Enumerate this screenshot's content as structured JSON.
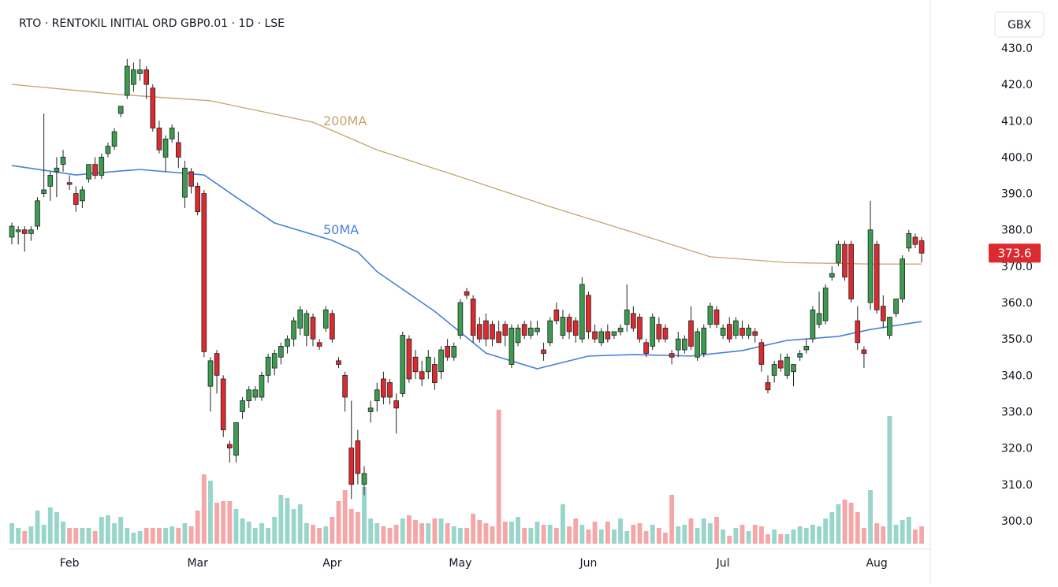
{
  "chart_data": {
    "type": "candlestick",
    "title": "RTO · RENTOKIL INITIAL ORD GBP0.01 · 1D · LSE",
    "currency": "GBX",
    "up_color": "#3b9c4f",
    "down_color": "#dd2a2f",
    "volume_up_color": "#98d5cb",
    "volume_down_color": "#f5a6a6",
    "xlim": [
      -0.37,
      143.1
    ],
    "ylim": [
      293.7,
      441.05
    ],
    "volume_ylim": [
      0,
      10
    ],
    "xticks": [
      {
        "value": 9,
        "label": "Feb"
      },
      {
        "value": 29,
        "label": "Mar"
      },
      {
        "value": 50,
        "label": "Apr"
      },
      {
        "value": 70,
        "label": "May"
      },
      {
        "value": 90,
        "label": "Jun"
      },
      {
        "value": 111,
        "label": "Jul"
      },
      {
        "value": 135,
        "label": "Aug"
      }
    ],
    "yticks": [
      {
        "value": 300,
        "label": "300.0"
      },
      {
        "value": 310,
        "label": "310.0"
      },
      {
        "value": 320,
        "label": "320.0"
      },
      {
        "value": 330,
        "label": "330.0"
      },
      {
        "value": 340,
        "label": "340.0"
      },
      {
        "value": 350,
        "label": "350.0"
      },
      {
        "value": 360,
        "label": "360.0"
      },
      {
        "value": 370,
        "label": "370.0"
      },
      {
        "value": 380,
        "label": "380.0"
      },
      {
        "value": 390,
        "label": "390.0"
      },
      {
        "value": 400,
        "label": "400.0"
      },
      {
        "value": 410,
        "label": "410.0"
      },
      {
        "value": 420,
        "label": "420.0"
      },
      {
        "value": 430,
        "label": "430.0"
      }
    ],
    "candles": [
      [
        378,
        382,
        376,
        381
      ],
      [
        379.5,
        381,
        376,
        380
      ],
      [
        380,
        381,
        374,
        379
      ],
      [
        379,
        381,
        377,
        380
      ],
      [
        381,
        389,
        380,
        388
      ],
      [
        390,
        412,
        389,
        391
      ],
      [
        392,
        396,
        388,
        395
      ],
      [
        396,
        400,
        389,
        397
      ],
      [
        398,
        402,
        396,
        400
      ],
      [
        393,
        395,
        391,
        392.5
      ],
      [
        390,
        392,
        385,
        387
      ],
      [
        388,
        392,
        386,
        391
      ],
      [
        394,
        398,
        393,
        398
      ],
      [
        398,
        400,
        394,
        395
      ],
      [
        395,
        401,
        394,
        400
      ],
      [
        401,
        404,
        400,
        403
      ],
      [
        403,
        408,
        402,
        407
      ],
      [
        412,
        414,
        411,
        414
      ],
      [
        417,
        427,
        416,
        425
      ],
      [
        420,
        426,
        418,
        424
      ],
      [
        423,
        427,
        421,
        424
      ],
      [
        424,
        425,
        416,
        420
      ],
      [
        419,
        420,
        407,
        408
      ],
      [
        408,
        410,
        401,
        402
      ],
      [
        400,
        406,
        396,
        405
      ],
      [
        405,
        409,
        404,
        408
      ],
      [
        404,
        407,
        397,
        400
      ],
      [
        389,
        399,
        386,
        397
      ],
      [
        396,
        397,
        390,
        392
      ],
      [
        392,
        393,
        384,
        385
      ],
      [
        390,
        391,
        345,
        346.5
      ],
      [
        337,
        345,
        330,
        344
      ],
      [
        346,
        347,
        335,
        340
      ],
      [
        339,
        340,
        323,
        325
      ],
      [
        321,
        322,
        316,
        320
      ],
      [
        318,
        327,
        316,
        327
      ],
      [
        330,
        334,
        328,
        333
      ],
      [
        333,
        337,
        331,
        336
      ],
      [
        334,
        337,
        333,
        336
      ],
      [
        334,
        341,
        333,
        340
      ],
      [
        340,
        346,
        338,
        345
      ],
      [
        342,
        347,
        340,
        346
      ],
      [
        345,
        349,
        343,
        348
      ],
      [
        348,
        351,
        346,
        350
      ],
      [
        350,
        356,
        348,
        355
      ],
      [
        353,
        359,
        351,
        358
      ],
      [
        351,
        358,
        348,
        357
      ],
      [
        356,
        357,
        348,
        350
      ],
      [
        349,
        350,
        347,
        348
      ],
      [
        353,
        359,
        352,
        358
      ],
      [
        357,
        358,
        349,
        350
      ],
      [
        344,
        345,
        342,
        343
      ],
      [
        340,
        341,
        330,
        334
      ],
      [
        320,
        333,
        306,
        310
      ],
      [
        322,
        325,
        310,
        313
      ],
      [
        310,
        315,
        307,
        313
      ],
      [
        330,
        333,
        327,
        331
      ],
      [
        333,
        338,
        330,
        336
      ],
      [
        339,
        341,
        332,
        334
      ],
      [
        338,
        339,
        332,
        334
      ],
      [
        333,
        335,
        324,
        331
      ],
      [
        335,
        352,
        334,
        351
      ],
      [
        350,
        351,
        338,
        339
      ],
      [
        345,
        347,
        339,
        341
      ],
      [
        341,
        344,
        337,
        339
      ],
      [
        341,
        347,
        339,
        345
      ],
      [
        343,
        345,
        336,
        338
      ],
      [
        341,
        348,
        339,
        347
      ],
      [
        348,
        350,
        344,
        345
      ],
      [
        345,
        349,
        344,
        348
      ],
      [
        351,
        361,
        350,
        360
      ],
      [
        363,
        364,
        361,
        362
      ],
      [
        361,
        362,
        349,
        351
      ],
      [
        354,
        356,
        349,
        350
      ],
      [
        355,
        357,
        348,
        350
      ],
      [
        354,
        355,
        348,
        350
      ],
      [
        352,
        355,
        349,
        349
      ],
      [
        354,
        355,
        348,
        351
      ],
      [
        343,
        354,
        342,
        353
      ],
      [
        349,
        354,
        348,
        353
      ],
      [
        354,
        355,
        350,
        351
      ],
      [
        351,
        355,
        350,
        353
      ],
      [
        352,
        355,
        351,
        353
      ],
      [
        347,
        349,
        344,
        346
      ],
      [
        349,
        356,
        348,
        355
      ],
      [
        358,
        360,
        354,
        355
      ],
      [
        351,
        358,
        350,
        356
      ],
      [
        356,
        357,
        350,
        352
      ],
      [
        355,
        356,
        349,
        351
      ],
      [
        350,
        367,
        349,
        365
      ],
      [
        362,
        363,
        350,
        352
      ],
      [
        352,
        354,
        349,
        350
      ],
      [
        349,
        353,
        348,
        352
      ],
      [
        352,
        354,
        349,
        350
      ],
      [
        351,
        352,
        350,
        352
      ],
      [
        352,
        354,
        351,
        353
      ],
      [
        354,
        365,
        352,
        358
      ],
      [
        357,
        359,
        352,
        353
      ],
      [
        356,
        357,
        349,
        350
      ],
      [
        349,
        350,
        345,
        346
      ],
      [
        348,
        357,
        347,
        356
      ],
      [
        354,
        356,
        349,
        350
      ],
      [
        353,
        354,
        349,
        350
      ],
      [
        346,
        347,
        343,
        345
      ],
      [
        347,
        352,
        345,
        350
      ],
      [
        347,
        351,
        346,
        350
      ],
      [
        355,
        359,
        347,
        348
      ],
      [
        345,
        353,
        344,
        352
      ],
      [
        346,
        354,
        345,
        353
      ],
      [
        354,
        360,
        353,
        359
      ],
      [
        358,
        359,
        353,
        354
      ],
      [
        351,
        354,
        350,
        353
      ],
      [
        354,
        356,
        349,
        350
      ],
      [
        351,
        356,
        350,
        355
      ],
      [
        353,
        355,
        350,
        351
      ],
      [
        351,
        354,
        350,
        353
      ],
      [
        352,
        353,
        349,
        351
      ],
      [
        349,
        350,
        341,
        343
      ],
      [
        338,
        340,
        335,
        336
      ],
      [
        340,
        344,
        338,
        343
      ],
      [
        344,
        346,
        341,
        342
      ],
      [
        340,
        346,
        339,
        345
      ],
      [
        341,
        343,
        337,
        343
      ],
      [
        345,
        347,
        344,
        346
      ],
      [
        347,
        350,
        346,
        348
      ],
      [
        350,
        359,
        349,
        358
      ],
      [
        354,
        363,
        353,
        357
      ],
      [
        355,
        365,
        354,
        364
      ],
      [
        367,
        370,
        366,
        368
      ],
      [
        371,
        377,
        370,
        376
      ],
      [
        376,
        377,
        366,
        367
      ],
      [
        376,
        377,
        360,
        361
      ],
      [
        355,
        359,
        347,
        349
      ],
      [
        347,
        348,
        342,
        346
      ],
      [
        360,
        388,
        358,
        380
      ],
      [
        376,
        377,
        357,
        358
      ],
      [
        359,
        362,
        353,
        355
      ],
      [
        351,
        356,
        350,
        356
      ],
      [
        357,
        361,
        356,
        361
      ],
      [
        361,
        373,
        360,
        372
      ],
      [
        375,
        380,
        374,
        379
      ],
      [
        378,
        379,
        375,
        376
      ],
      [
        377,
        378,
        371,
        373.6
      ]
    ],
    "volume": [
      1.3,
      1.0,
      0.8,
      1.1,
      2.1,
      1.2,
      2.3,
      2.0,
      1.4,
      1.0,
      1.0,
      1.0,
      1.0,
      0.8,
      1.7,
      1.8,
      1.3,
      1.7,
      1.0,
      0.7,
      0.8,
      1.0,
      1.0,
      1.0,
      1.0,
      1.1,
      1.0,
      1.3,
      1.1,
      2.1,
      4.4,
      4.0,
      2.6,
      2.7,
      2.7,
      2.2,
      1.6,
      1.4,
      1.0,
      1.3,
      1.0,
      1.7,
      3.1,
      2.9,
      2.2,
      2.5,
      1.3,
      1.2,
      1.0,
      1.1,
      1.7,
      2.7,
      3.4,
      2.2,
      2.0,
      3.6,
      1.6,
      1.3,
      1.1,
      1.0,
      1.2,
      1.6,
      1.8,
      1.5,
      1.3,
      1.3,
      1.6,
      1.6,
      1.3,
      1.1,
      1.0,
      1.0,
      1.9,
      1.5,
      1.3,
      1.1,
      8.5,
      1.4,
      1.4,
      1.7,
      1.0,
      1.0,
      1.4,
      1.2,
      1.2,
      1.0,
      2.5,
      1.1,
      1.6,
      1.2,
      0.9,
      1.4,
      0.9,
      1.4,
      0.9,
      1.6,
      0.8,
      1.2,
      1.3,
      0.8,
      1.2,
      1.0,
      0.7,
      3.1,
      1.1,
      1.2,
      1.6,
      1.0,
      1.6,
      1.3,
      1.7,
      0.9,
      0.5,
      1.0,
      1.2,
      0.8,
      1.2,
      1.1,
      0.6,
      0.9,
      0.6,
      0.6,
      0.9,
      1.1,
      1.0,
      1.2,
      1.1,
      1.6,
      2.0,
      2.5,
      2.8,
      2.6,
      2.0,
      1.0,
      3.4,
      1.3,
      1.1,
      8.1,
      1.2,
      1.5,
      1.7,
      0.9,
      1.1
    ],
    "moving_averages": [
      {
        "name": "200MA",
        "color": "#c9a26b",
        "x": [
          0,
          17,
          31,
          47,
          57,
          72,
          84,
          97,
          109,
          121,
          134,
          142
        ],
        "values": [
          420,
          417.2,
          415.5,
          409.6,
          402,
          393.4,
          386.4,
          379.3,
          372.6,
          371,
          370.6,
          370.6
        ]
      },
      {
        "name": "50MA",
        "color": "#4a7fdc",
        "x": [
          0,
          10,
          17,
          20,
          30,
          35,
          41,
          50,
          54,
          57,
          66,
          74,
          82,
          90,
          97,
          106,
          114,
          121,
          129,
          134,
          142
        ],
        "values": [
          397.7,
          395.1,
          396.2,
          396.6,
          395.1,
          389,
          381.9,
          377.1,
          373.9,
          368.5,
          357.6,
          346.1,
          341.8,
          345.3,
          345.7,
          345.3,
          346.8,
          349.6,
          350.7,
          352.6,
          354.8
        ]
      }
    ]
  }
}
